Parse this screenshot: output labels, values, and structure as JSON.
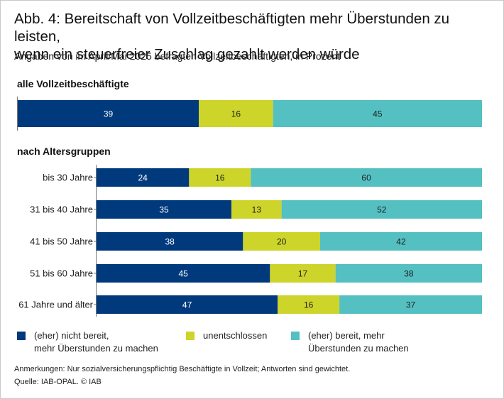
{
  "header": {
    "title_line1": "Abb. 4: Bereitschaft von Vollzeitbeschäftigten mehr Überstunden zu leisten,",
    "title_line2": "wenn ein steuerfreier Zuschlag gezahlt werden würde",
    "subtitle": "Angaben von im April/Mai 2025 befragten Vollzeitbeschäftigten, in Prozent"
  },
  "sections": {
    "all": "alle Vollzeitbeschäftigte",
    "by_age": "nach Altersgruppen"
  },
  "legend": [
    {
      "line1": "(eher) nicht bereit,",
      "line2": "mehr Überstunden zu machen",
      "color": "#003a7d"
    },
    {
      "line1": "unentschlossen",
      "line2": "",
      "color": "#cdd42a"
    },
    {
      "line1": "(eher) bereit, mehr",
      "line2": "Überstunden zu machen",
      "color": "#54c0c2"
    }
  ],
  "footer": {
    "note": "Anmerkungen: Nur sozialversicherungspflichtig Beschäftigte in Vollzeit; Antworten sind gewichtet.",
    "source": "Quelle: IAB-OPAL.   © IAB"
  },
  "chart_data": {
    "type": "bar",
    "orientation": "horizontal",
    "stacked": true,
    "unit": "percent",
    "xlim": [
      0,
      100
    ],
    "series": [
      {
        "name": "(eher) nicht bereit, mehr Überstunden zu machen",
        "color": "#003a7d",
        "label_color": "#ffffff"
      },
      {
        "name": "unentschlossen",
        "color": "#cdd42a",
        "label_color": "#222222"
      },
      {
        "name": "(eher) bereit, mehr Überstunden zu machen",
        "color": "#54c0c2",
        "label_color": "#222222"
      }
    ],
    "groups": [
      {
        "name": "alle Vollzeitbeschäftigte",
        "rows": [
          {
            "label": "",
            "values": [
              39,
              16,
              45
            ]
          }
        ]
      },
      {
        "name": "nach Altersgruppen",
        "rows": [
          {
            "label": "bis 30 Jahre",
            "values": [
              24,
              16,
              60
            ]
          },
          {
            "label": "31 bis 40 Jahre",
            "values": [
              35,
              13,
              52
            ]
          },
          {
            "label": "41 bis 50 Jahre",
            "values": [
              38,
              20,
              42
            ]
          },
          {
            "label": "51 bis 60 Jahre",
            "values": [
              45,
              17,
              38
            ]
          },
          {
            "label": "61 Jahre und älter",
            "values": [
              47,
              16,
              37
            ]
          }
        ]
      }
    ]
  }
}
